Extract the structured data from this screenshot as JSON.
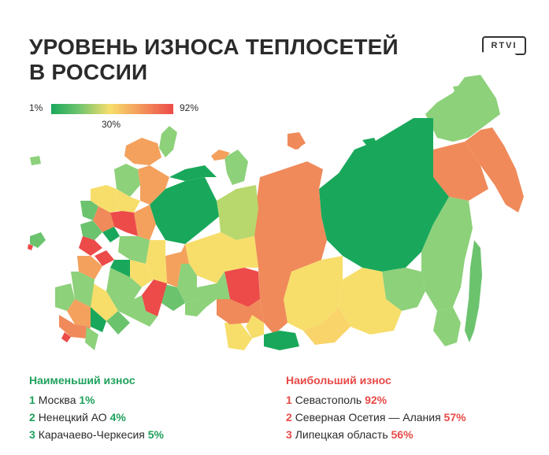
{
  "title": {
    "line1": "УРОВЕНЬ ИЗНОСА ТЕПЛОСЕТЕЙ",
    "line2": "В РОССИИ"
  },
  "logo": "RTVI",
  "legend": {
    "min": "1%",
    "mid": "30%",
    "max": "92%"
  },
  "colors": {
    "low": "#19a85b",
    "midlow": "#8dd17a",
    "mid": "#f7de6b",
    "midhigh": "#f4a15d",
    "high": "#ec4b49",
    "accent_green": "#1fa15c",
    "accent_red": "#e74a47"
  },
  "lowest": {
    "title": "Наименьший износ",
    "items": [
      {
        "rank": "1",
        "name": "Москва",
        "value": "1%"
      },
      {
        "rank": "2",
        "name": "Ненецкий АО",
        "value": "4%"
      },
      {
        "rank": "3",
        "name": "Карачаево-Черкесия",
        "value": "5%"
      }
    ]
  },
  "highest": {
    "title": "Наибольший износ",
    "items": [
      {
        "rank": "1",
        "name": "Севастополь",
        "value": "92%"
      },
      {
        "rank": "2",
        "name": "Северная Осетия — Алания",
        "value": "57%"
      },
      {
        "rank": "3",
        "name": "Липецкая область",
        "value": "56%"
      }
    ]
  }
}
